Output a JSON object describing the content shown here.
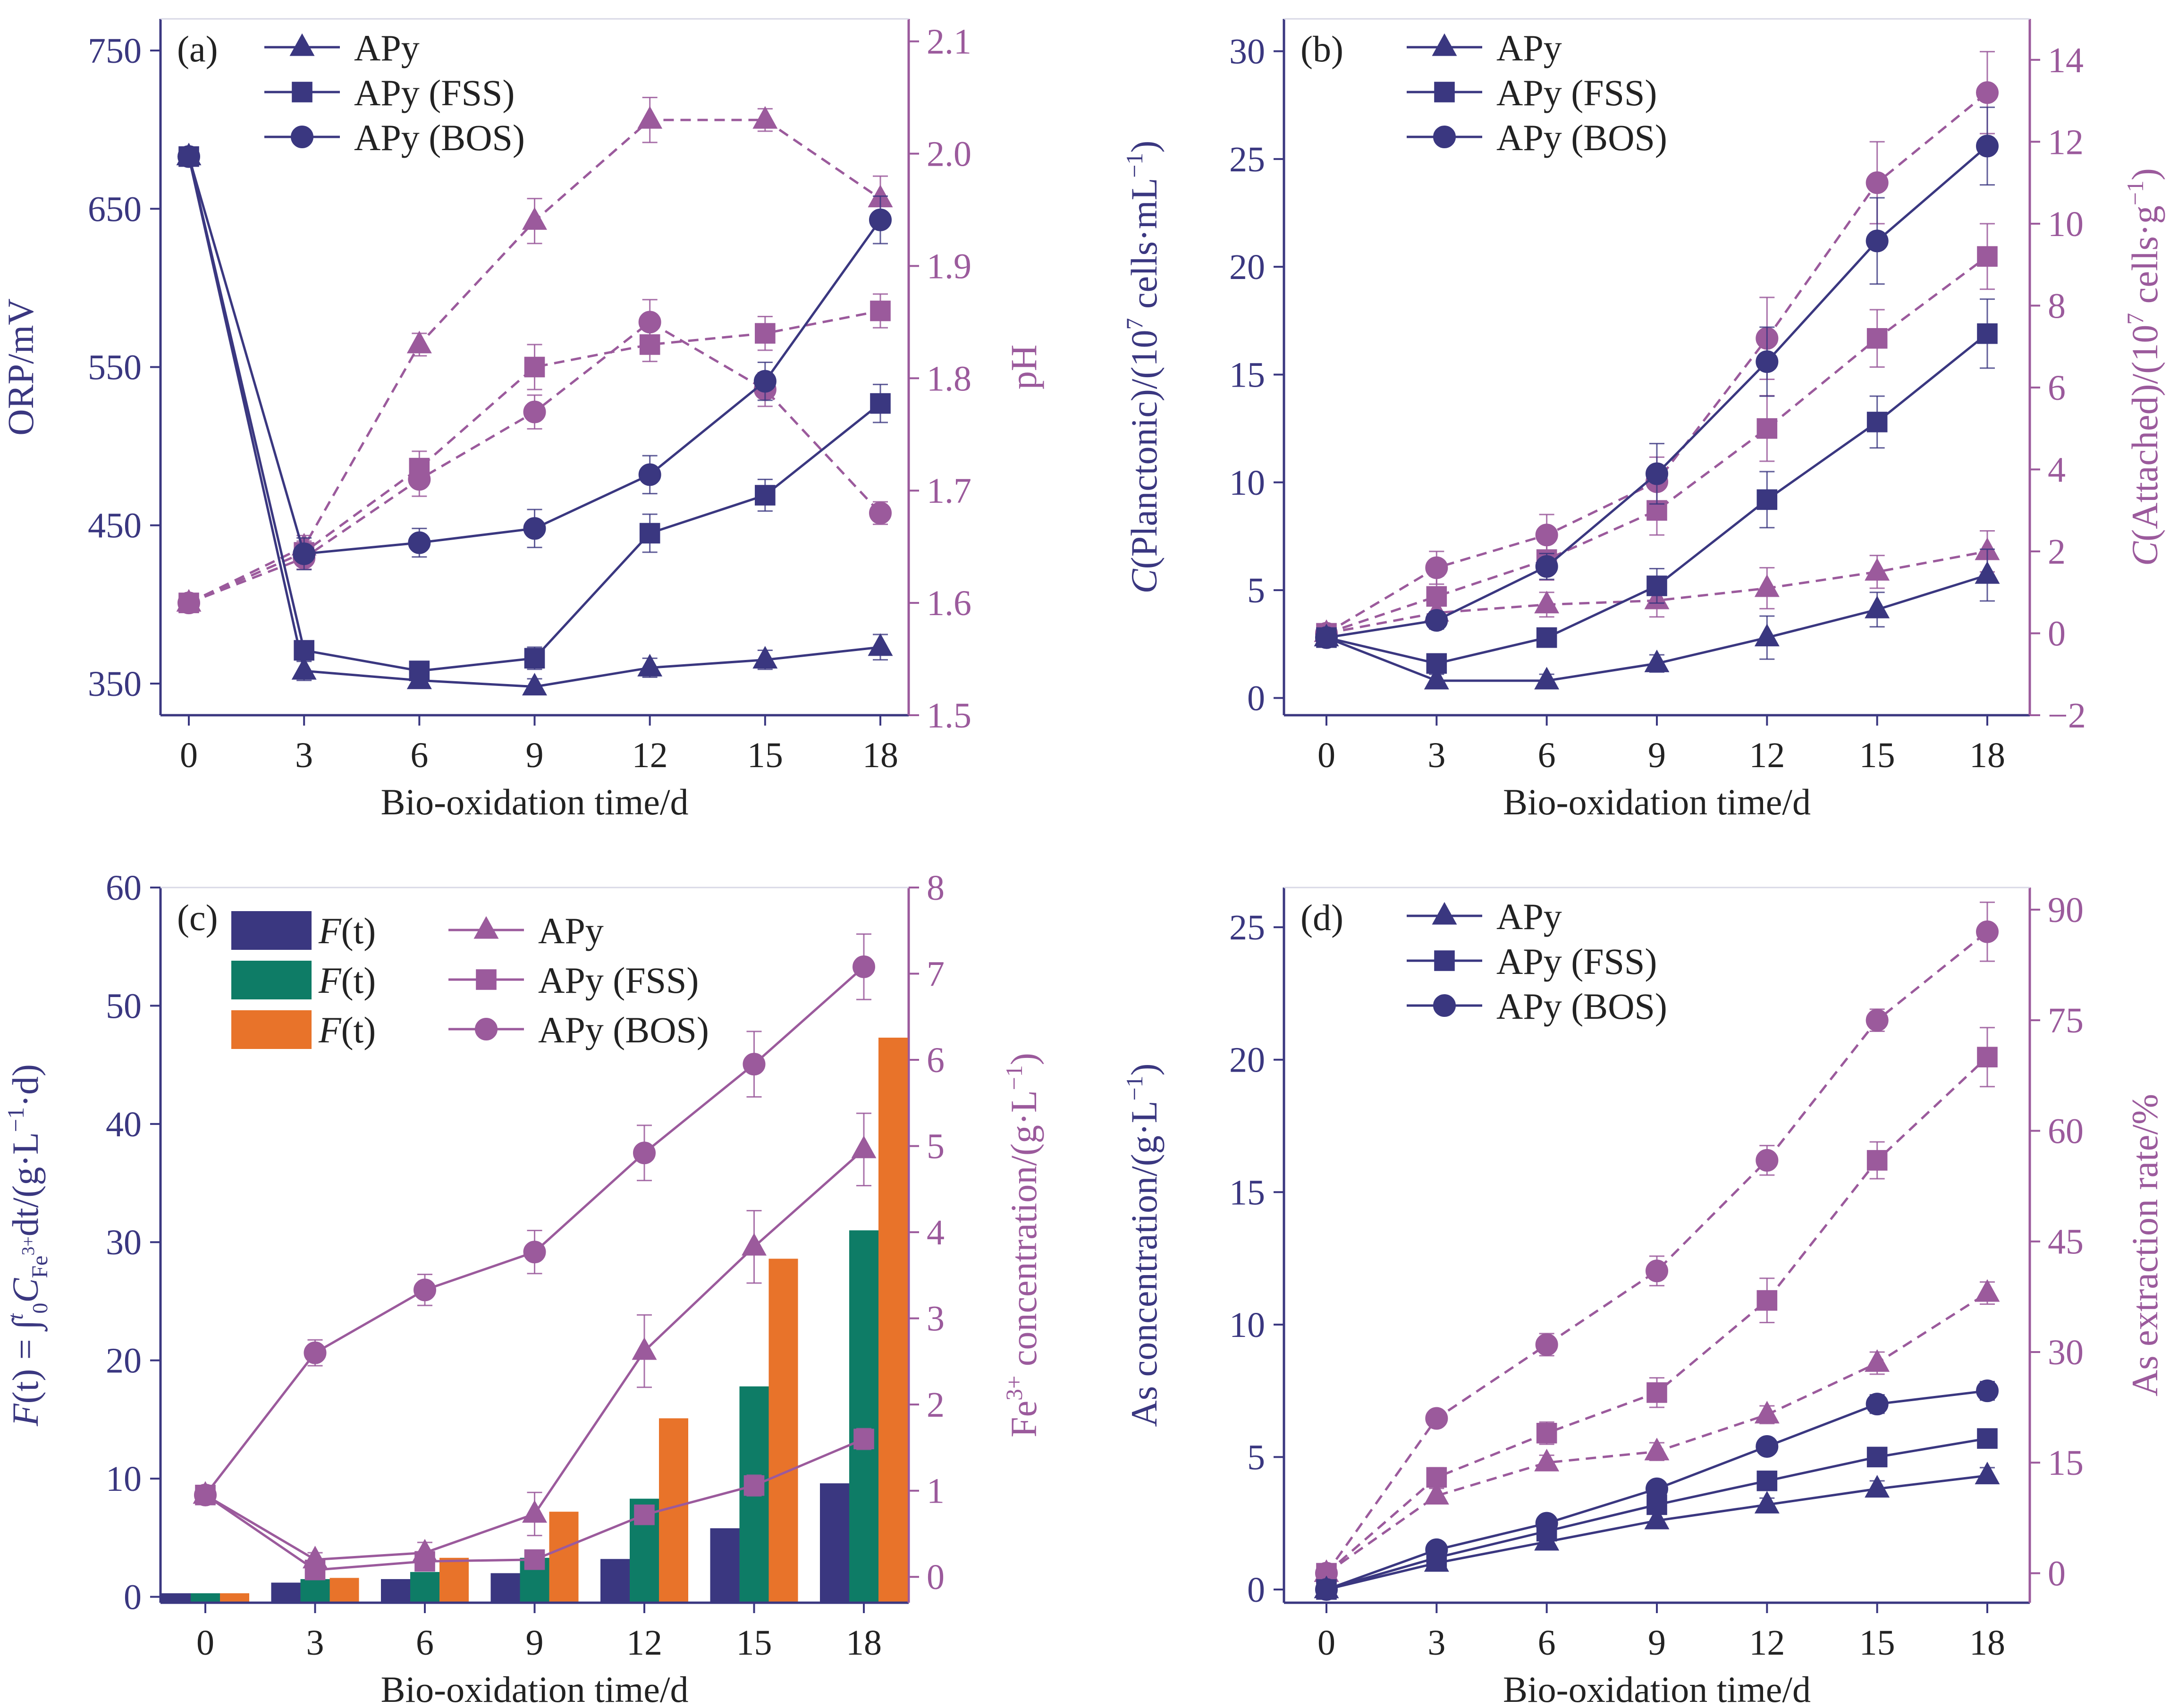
{
  "figure": {
    "colors": {
      "blue": "#3A3780",
      "purple": "#9B5A9C",
      "green": "#0E7C66",
      "orange": "#E8732A",
      "errorbar": "#9A9A9A"
    }
  },
  "chart_data": [
    {
      "id": "a",
      "panel_label": "(a)",
      "type": "line",
      "xlabel": "Bio-oxidation time/d",
      "x": [
        0,
        3,
        6,
        9,
        12,
        15,
        18
      ],
      "xticks": [
        "0",
        "3",
        "6",
        "9",
        "12",
        "15",
        "18"
      ],
      "ylabel_left": "ORP/mV",
      "ylabel_right": "pH",
      "ylim_left": [
        330,
        770
      ],
      "yticks_left": [
        350,
        450,
        550,
        650,
        750
      ],
      "ylim_right": [
        1.5,
        2.12
      ],
      "yticks_right": [
        "1.5",
        "1.6",
        "1.7",
        "1.8",
        "1.9",
        "2.0",
        "2.1"
      ],
      "legend": [
        {
          "label": "APy",
          "marker": "triangle"
        },
        {
          "label": "APy (FSS)",
          "marker": "square"
        },
        {
          "label": "APy (BOS)",
          "marker": "circle"
        }
      ],
      "series_left": [
        {
          "name": "APy",
          "marker": "triangle",
          "values": [
            683,
            358,
            352,
            348,
            360,
            365,
            373
          ],
          "err": [
            4,
            6,
            5,
            5,
            6,
            6,
            8
          ]
        },
        {
          "name": "APy (FSS)",
          "marker": "square",
          "values": [
            683,
            371,
            358,
            366,
            445,
            469,
            527
          ],
          "err": [
            4,
            6,
            6,
            7,
            12,
            10,
            12
          ]
        },
        {
          "name": "APy (BOS)",
          "marker": "circle",
          "values": [
            683,
            432,
            439,
            448,
            482,
            541,
            643
          ],
          "err": [
            4,
            10,
            9,
            12,
            12,
            12,
            15
          ]
        }
      ],
      "series_right": [
        {
          "name": "APy",
          "marker": "triangle",
          "values": [
            1.6,
            1.65,
            1.83,
            1.94,
            2.03,
            2.03,
            1.96
          ],
          "err": [
            0.005,
            0.01,
            0.01,
            0.02,
            0.02,
            0.01,
            0.02
          ]
        },
        {
          "name": "APy (FSS)",
          "marker": "square",
          "values": [
            1.6,
            1.645,
            1.72,
            1.81,
            1.83,
            1.84,
            1.86
          ],
          "err": [
            0.005,
            0.01,
            0.015,
            0.02,
            0.015,
            0.015,
            0.015
          ]
        },
        {
          "name": "APy (BOS)",
          "marker": "circle",
          "values": [
            1.6,
            1.64,
            1.71,
            1.77,
            1.85,
            1.79,
            1.68
          ],
          "err": [
            0.005,
            0.01,
            0.015,
            0.015,
            0.02,
            0.015,
            0.01
          ]
        }
      ]
    },
    {
      "id": "b",
      "panel_label": "(b)",
      "type": "line",
      "xlabel": "Bio-oxidation time/d",
      "x": [
        0,
        3,
        6,
        9,
        12,
        15,
        18
      ],
      "xticks": [
        "0",
        "3",
        "6",
        "9",
        "12",
        "15",
        "18"
      ],
      "ylabel_left": {
        "pre": "C",
        "main": "(Planctonic)/(10",
        "sup": "7",
        "post": " cells·mL",
        "sup2": "−1",
        "end": ")"
      },
      "ylabel_right": {
        "pre": "C",
        "main": "(Attached)/(10",
        "sup": "7",
        "post": " cells·g",
        "sup2": "−1",
        "end": ")"
      },
      "ylim_left": [
        -0.8,
        31.5
      ],
      "yticks_left": [
        0,
        5,
        10,
        15,
        20,
        25,
        30
      ],
      "ylim_right": [
        -2,
        15
      ],
      "yticks_right": [
        "−2",
        "0",
        "2",
        "4",
        "6",
        "8",
        "10",
        "12",
        "14"
      ],
      "legend": [
        {
          "label": "APy",
          "marker": "triangle"
        },
        {
          "label": "APy (FSS)",
          "marker": "square"
        },
        {
          "label": "APy (BOS)",
          "marker": "circle"
        }
      ],
      "series_left": [
        {
          "name": "APy",
          "marker": "triangle",
          "values": [
            2.8,
            0.8,
            0.8,
            1.6,
            2.8,
            4.1,
            5.7
          ],
          "err": [
            0.3,
            0.3,
            0.3,
            0.4,
            1.0,
            0.8,
            1.2
          ]
        },
        {
          "name": "APy (FSS)",
          "marker": "square",
          "values": [
            2.8,
            1.6,
            2.8,
            5.2,
            9.2,
            12.8,
            16.9
          ],
          "err": [
            0.3,
            0.3,
            0.4,
            0.8,
            1.3,
            1.2,
            1.6
          ]
        },
        {
          "name": "APy (BOS)",
          "marker": "circle",
          "values": [
            2.8,
            3.6,
            6.1,
            10.4,
            15.6,
            21.2,
            25.6
          ],
          "err": [
            0.3,
            0.4,
            0.6,
            1.4,
            1.6,
            2.0,
            1.8
          ]
        }
      ],
      "series_right": [
        {
          "name": "APy",
          "marker": "triangle",
          "values": [
            0,
            0.5,
            0.7,
            0.8,
            1.1,
            1.5,
            2.0
          ],
          "err": [
            0.2,
            0.3,
            0.3,
            0.4,
            0.5,
            0.4,
            0.5
          ]
        },
        {
          "name": "APy (FSS)",
          "marker": "square",
          "values": [
            0,
            0.9,
            1.8,
            3.0,
            5.0,
            7.2,
            9.2
          ],
          "err": [
            0.2,
            0.5,
            0.5,
            0.6,
            0.8,
            0.7,
            0.8
          ]
        },
        {
          "name": "APy (BOS)",
          "marker": "circle",
          "values": [
            0,
            1.6,
            2.4,
            3.7,
            7.2,
            11.0,
            13.2
          ],
          "err": [
            0.2,
            0.4,
            0.5,
            0.6,
            1.0,
            1.0,
            1.0
          ]
        }
      ]
    },
    {
      "id": "c",
      "panel_label": "(c)",
      "type": "bar+line",
      "xlabel": "Bio-oxidation time/d",
      "x": [
        0,
        3,
        6,
        9,
        12,
        15,
        18
      ],
      "xticks": [
        "0",
        "3",
        "6",
        "9",
        "12",
        "15",
        "18"
      ],
      "ylabel_left": {
        "prefix": "F",
        "mid": "(t) = ∫",
        "lim_sup": "t",
        "lim_sub": "0",
        "c": "C",
        "c_sub": "Fe",
        "c_subsup": "3+",
        "suffix": "dt/(g·L",
        "sup": "−1",
        "end": "·d)"
      },
      "ylabel_right": {
        "pre": "Fe",
        "sup": "3+",
        "post": " concentration/(g·L",
        "sup2": "−1",
        "end": ")"
      },
      "ylim_left": [
        -0.5,
        60
      ],
      "yticks_left": [
        0,
        10,
        20,
        30,
        40,
        50,
        60
      ],
      "ylim_right": [
        -0.3,
        8
      ],
      "yticks_right": [
        "0",
        "1",
        "2",
        "3",
        "4",
        "5",
        "6",
        "7",
        "8"
      ],
      "legend_bars": [
        {
          "label_func": "F",
          "label_arg": "(t)",
          "color": "blue"
        },
        {
          "label_func": "F",
          "label_arg": "(t)",
          "color": "green"
        },
        {
          "label_func": "F",
          "label_arg": "(t)",
          "color": "orange"
        }
      ],
      "legend_lines": [
        {
          "label": "APy",
          "marker": "triangle"
        },
        {
          "label": "APy (FSS)",
          "marker": "square"
        },
        {
          "label": "APy (BOS)",
          "marker": "circle"
        }
      ],
      "bars": [
        {
          "name": "F(t) APy",
          "color": "blue",
          "values": [
            0.3,
            1.2,
            1.5,
            2.0,
            3.2,
            5.8,
            9.6
          ]
        },
        {
          "name": "F(t) APy (FSS)",
          "color": "green",
          "values": [
            0.3,
            1.5,
            2.1,
            3.3,
            8.3,
            17.8,
            31.0
          ]
        },
        {
          "name": "F(t) APy (BOS)",
          "color": "orange",
          "values": [
            0.3,
            1.6,
            3.3,
            7.2,
            15.1,
            28.6,
            47.3
          ]
        }
      ],
      "series_right": [
        {
          "name": "APy",
          "marker": "triangle",
          "values": [
            0.95,
            0.2,
            0.28,
            0.73,
            2.62,
            3.83,
            4.96
          ],
          "err": [
            0.08,
            0.08,
            0.12,
            0.25,
            0.42,
            0.42,
            0.42
          ]
        },
        {
          "name": "APy (FSS)",
          "marker": "square",
          "values": [
            0.95,
            0.08,
            0.18,
            0.2,
            0.72,
            1.06,
            1.6
          ],
          "err": [
            0.05,
            0.04,
            0.04,
            0.05,
            0.08,
            0.12,
            0.12
          ]
        },
        {
          "name": "APy (BOS)",
          "marker": "circle",
          "values": [
            0.95,
            2.6,
            3.33,
            3.77,
            4.92,
            5.95,
            7.08
          ],
          "err": [
            0.06,
            0.15,
            0.18,
            0.25,
            0.32,
            0.38,
            0.38
          ]
        }
      ]
    },
    {
      "id": "d",
      "panel_label": "(d)",
      "type": "line",
      "xlabel": "Bio-oxidation time/d",
      "x": [
        0,
        3,
        6,
        9,
        12,
        15,
        18
      ],
      "xticks": [
        "0",
        "3",
        "6",
        "9",
        "12",
        "15",
        "18"
      ],
      "ylabel_left": {
        "main": "As concentration/(g·L",
        "sup": "−1",
        "end": ")"
      },
      "ylabel_right": "As extraction rate/%",
      "ylim_left": [
        -0.5,
        26.5
      ],
      "yticks_left": [
        0,
        5,
        10,
        15,
        20,
        25
      ],
      "ylim_right": [
        -4,
        93
      ],
      "yticks_right": [
        "0",
        "15",
        "30",
        "45",
        "60",
        "75",
        "90"
      ],
      "legend": [
        {
          "label": "APy",
          "marker": "triangle"
        },
        {
          "label": "APy (FSS)",
          "marker": "square"
        },
        {
          "label": "APy (BOS)",
          "marker": "circle"
        }
      ],
      "series_left": [
        {
          "name": "APy",
          "marker": "triangle",
          "values": [
            0,
            1.0,
            1.8,
            2.6,
            3.2,
            3.8,
            4.3
          ],
          "err": [
            0.1,
            0.15,
            0.2,
            0.25,
            0.25,
            0.3,
            0.3
          ]
        },
        {
          "name": "APy (FSS)",
          "marker": "square",
          "values": [
            0,
            1.2,
            2.2,
            3.2,
            4.1,
            5.0,
            5.7
          ],
          "err": [
            0.1,
            0.15,
            0.2,
            0.25,
            0.3,
            0.3,
            0.3
          ]
        },
        {
          "name": "APy (BOS)",
          "marker": "circle",
          "values": [
            0,
            1.5,
            2.5,
            3.8,
            5.4,
            7.0,
            7.5
          ],
          "err": [
            0.1,
            0.15,
            0.2,
            0.25,
            0.3,
            0.35,
            0.35
          ]
        }
      ],
      "series_right": [
        {
          "name": "APy",
          "marker": "triangle",
          "values": [
            0,
            10.5,
            15,
            16.5,
            21.5,
            28.5,
            38
          ],
          "err": [
            0.5,
            1.0,
            1.0,
            1.2,
            1.2,
            1.5,
            1.5
          ]
        },
        {
          "name": "APy (FSS)",
          "marker": "square",
          "values": [
            0,
            13,
            19,
            24.5,
            37,
            56,
            70
          ],
          "err": [
            0.5,
            1.3,
            1.5,
            2.0,
            3.0,
            2.5,
            4.0
          ]
        },
        {
          "name": "APy (BOS)",
          "marker": "circle",
          "values": [
            0,
            21,
            31,
            41,
            56,
            75,
            87
          ],
          "err": [
            0.5,
            1.0,
            1.5,
            2.0,
            2.0,
            1.5,
            4.0
          ]
        }
      ]
    }
  ]
}
